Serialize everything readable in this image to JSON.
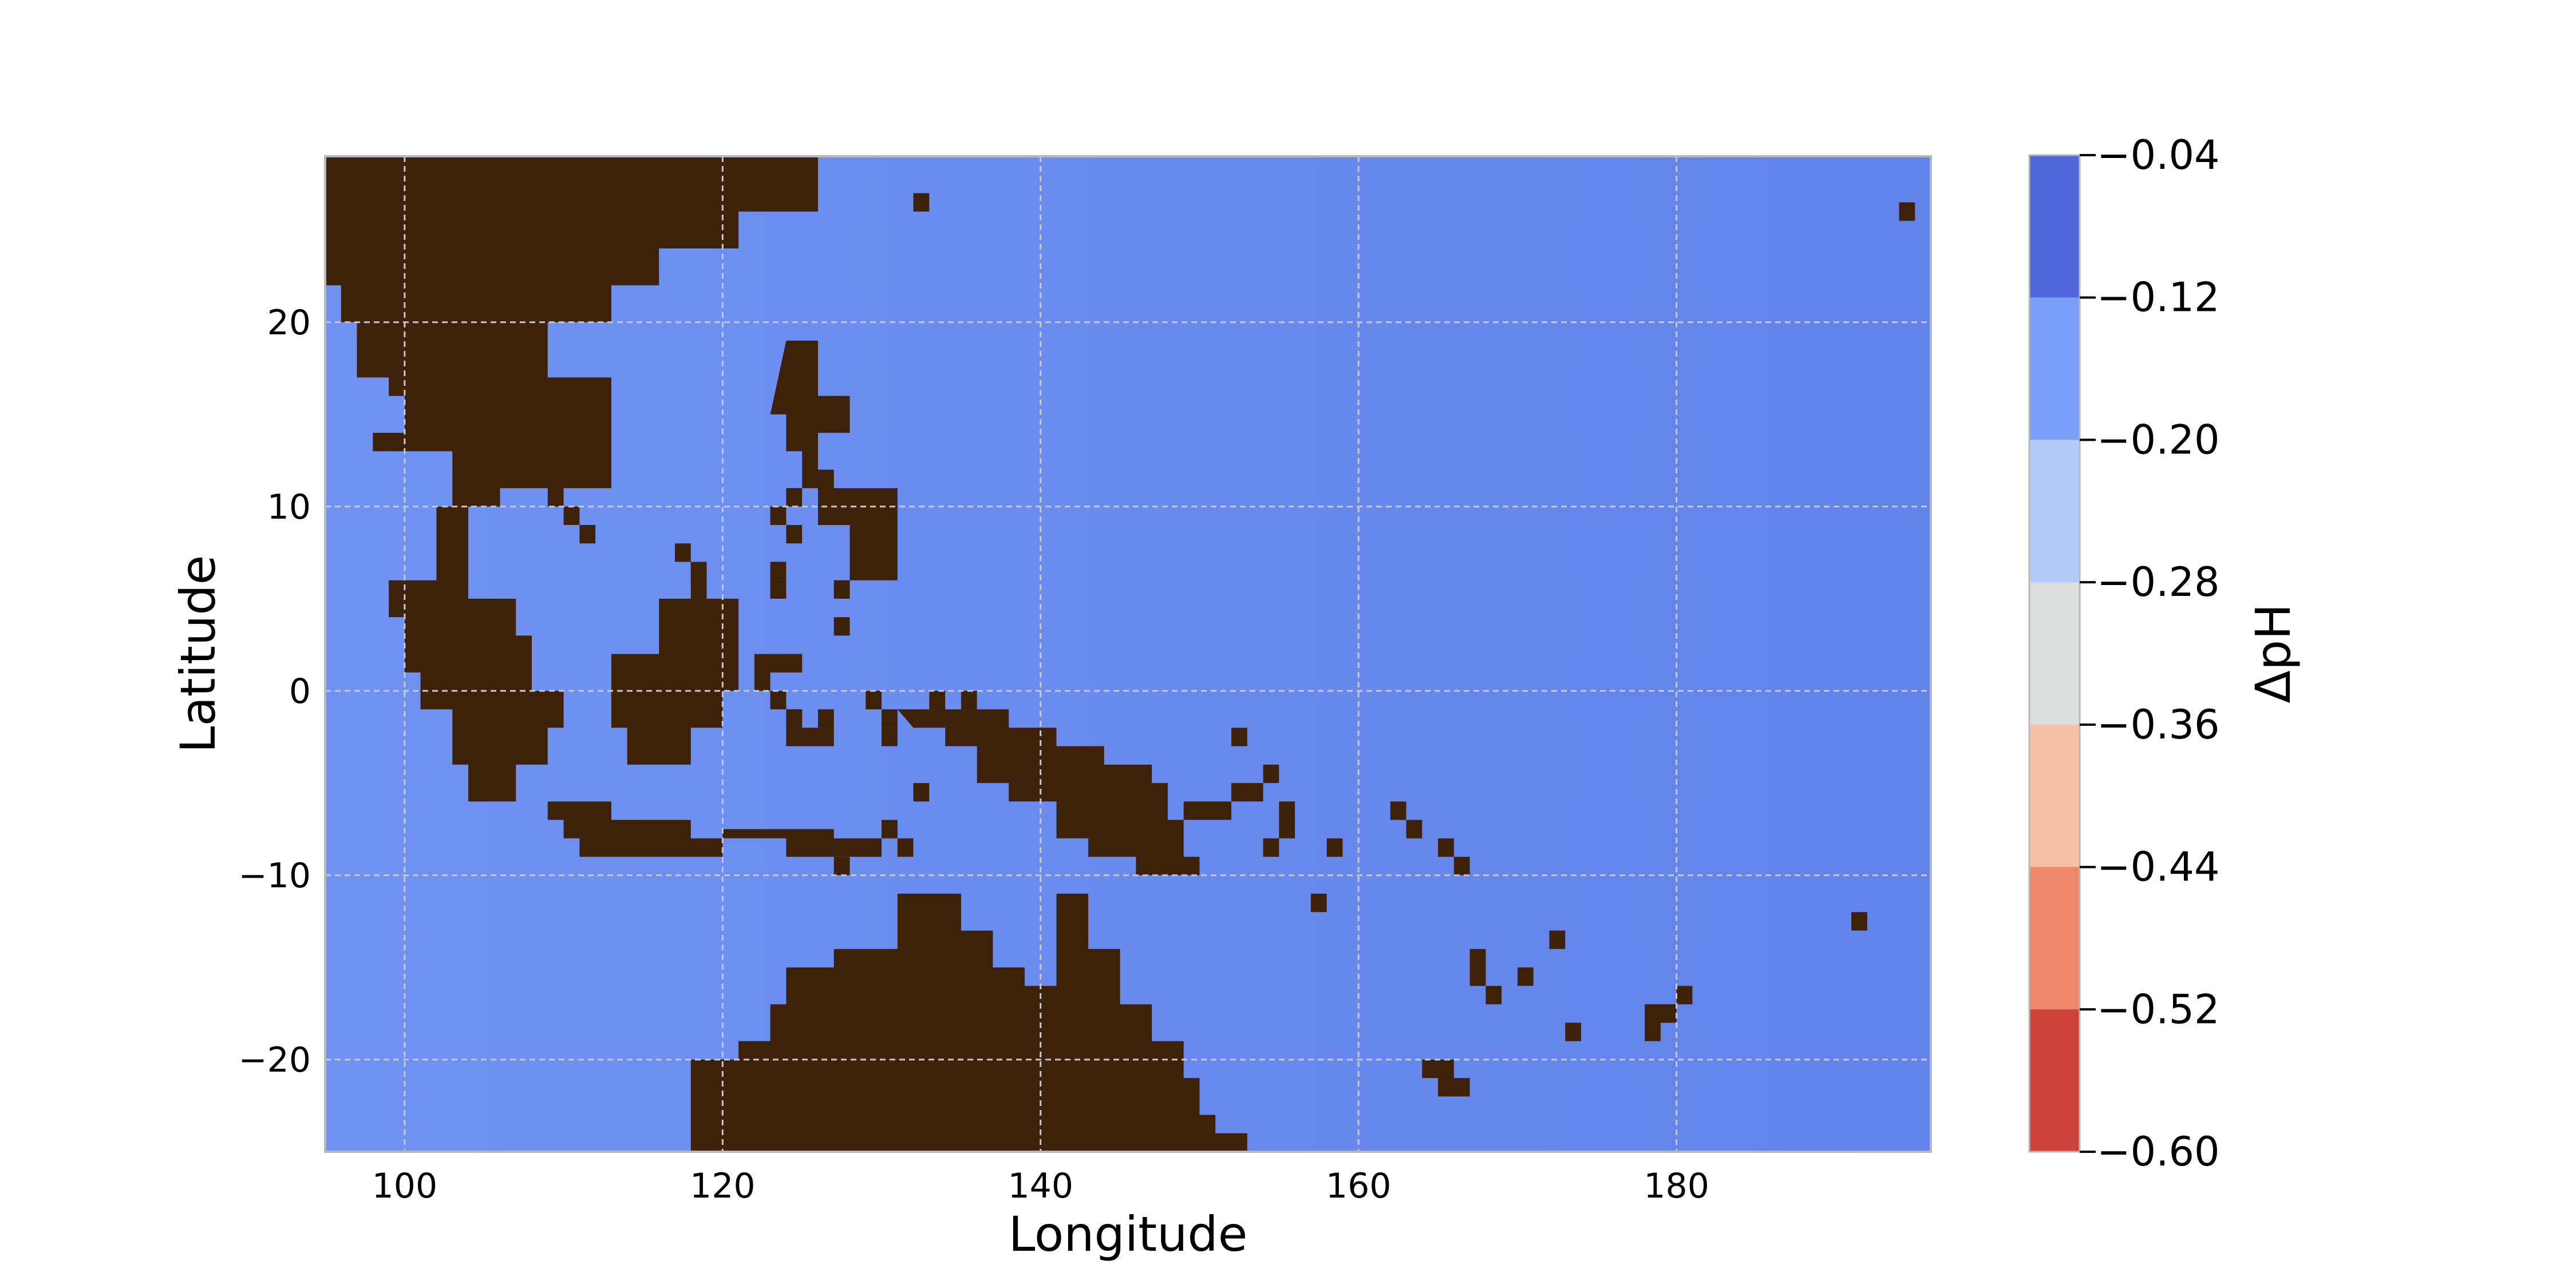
{
  "chart_data": {
    "type": "heatmap",
    "title": "",
    "xlabel": "Longitude",
    "ylabel": "Latitude",
    "xlim": [
      95,
      196
    ],
    "ylim": [
      -25,
      29
    ],
    "xticks": [
      100,
      120,
      140,
      160,
      180
    ],
    "yticks": [
      20,
      10,
      0,
      -10,
      -20
    ],
    "ytick_labels": [
      "20",
      "10",
      "0",
      "−10",
      "−20"
    ],
    "xtick_labels": [
      "100",
      "120",
      "140",
      "160",
      "180"
    ],
    "grid": true,
    "field_value_range": [
      -0.2,
      -0.04
    ],
    "land_color": "#3d2209",
    "colorbar": {
      "label": "ΔpH",
      "ticks": [
        -0.04,
        -0.12,
        -0.2,
        -0.28,
        -0.36,
        -0.44,
        -0.52,
        -0.6
      ],
      "tick_labels": [
        "−0.04",
        "−0.12",
        "−0.20",
        "−0.28",
        "−0.36",
        "−0.44",
        "−0.52",
        "−0.60"
      ],
      "bins": [
        {
          "from": -0.12,
          "to": -0.04,
          "color": "#5068d9"
        },
        {
          "from": -0.2,
          "to": -0.12,
          "color": "#7b9ff9"
        },
        {
          "from": -0.28,
          "to": -0.2,
          "color": "#b3cbf9"
        },
        {
          "from": -0.36,
          "to": -0.28,
          "color": "#dcdddd"
        },
        {
          "from": -0.44,
          "to": -0.36,
          "color": "#f5c0a6"
        },
        {
          "from": -0.52,
          "to": -0.44,
          "color": "#ef886b"
        },
        {
          "from": -0.6,
          "to": -0.52,
          "color": "#cd423b"
        }
      ]
    },
    "ocean_colors": {
      "east": "#6283ea",
      "west": "#7093f2"
    },
    "land_polygons": [
      {
        "name": "asia-mainland",
        "points": [
          [
            95,
            29
          ],
          [
            126,
            29
          ],
          [
            126,
            26
          ],
          [
            121,
            26
          ],
          [
            121,
            24
          ],
          [
            116,
            24
          ],
          [
            116,
            22
          ],
          [
            113,
            22
          ],
          [
            113,
            20
          ],
          [
            109,
            20
          ],
          [
            109,
            17
          ],
          [
            113,
            17
          ],
          [
            113,
            11
          ],
          [
            110,
            11
          ],
          [
            110,
            10
          ],
          [
            109,
            10
          ],
          [
            109,
            11
          ],
          [
            106,
            11
          ],
          [
            106,
            10
          ],
          [
            103,
            10
          ],
          [
            103,
            13
          ],
          [
            100,
            13
          ],
          [
            100,
            16
          ],
          [
            99,
            16
          ],
          [
            99,
            17
          ],
          [
            97,
            17
          ],
          [
            97,
            20
          ],
          [
            96,
            20
          ],
          [
            96,
            22
          ],
          [
            95,
            22
          ]
        ]
      },
      {
        "name": "malay-peninsula",
        "points": [
          [
            102,
            10
          ],
          [
            104,
            10
          ],
          [
            104,
            7
          ],
          [
            104,
            5
          ],
          [
            102,
            5
          ],
          [
            102,
            7
          ]
        ]
      },
      {
        "name": "sumatra",
        "points": [
          [
            99,
            6
          ],
          [
            104,
            6
          ],
          [
            104,
            5
          ],
          [
            107,
            5
          ],
          [
            107,
            3
          ],
          [
            108,
            3
          ],
          [
            108,
            0
          ],
          [
            110,
            0
          ],
          [
            110,
            -2
          ],
          [
            109,
            -2
          ],
          [
            109,
            -4
          ],
          [
            107,
            -4
          ],
          [
            107,
            -6
          ],
          [
            104,
            -6
          ],
          [
            104,
            -4
          ],
          [
            103,
            -4
          ],
          [
            103,
            -1
          ],
          [
            101,
            -1
          ],
          [
            101,
            1
          ],
          [
            100,
            1
          ],
          [
            100,
            4
          ],
          [
            99,
            4
          ]
        ]
      },
      {
        "name": "borneo",
        "points": [
          [
            113,
            0
          ],
          [
            113,
            2
          ],
          [
            116,
            2
          ],
          [
            116,
            5
          ],
          [
            118,
            5
          ],
          [
            118,
            7
          ],
          [
            119,
            7
          ],
          [
            119,
            5
          ],
          [
            121,
            5
          ],
          [
            121,
            0
          ],
          [
            120,
            0
          ],
          [
            120,
            -2
          ],
          [
            118,
            -2
          ],
          [
            118,
            -4
          ],
          [
            114,
            -4
          ],
          [
            114,
            -2
          ],
          [
            113,
            -2
          ]
        ]
      },
      {
        "name": "java-nusa",
        "points": [
          [
            109,
            -6
          ],
          [
            113,
            -6
          ],
          [
            113,
            -7
          ],
          [
            118,
            -7
          ],
          [
            118,
            -8
          ],
          [
            124,
            -8
          ],
          [
            124,
            -9
          ],
          [
            130,
            -9
          ],
          [
            130,
            -8
          ],
          [
            127,
            -8
          ],
          [
            127,
            -7.5
          ],
          [
            120,
            -7.5
          ],
          [
            120,
            -9
          ],
          [
            111,
            -9
          ],
          [
            111,
            -8
          ],
          [
            110,
            -8
          ],
          [
            110,
            -7
          ],
          [
            109,
            -7
          ]
        ]
      },
      {
        "name": "sulawesi",
        "points": [
          [
            122,
            2
          ],
          [
            125,
            2
          ],
          [
            125,
            1
          ],
          [
            123,
            1
          ],
          [
            123,
            -1
          ],
          [
            124,
            -1
          ],
          [
            124,
            -3
          ],
          [
            127,
            -3
          ],
          [
            127,
            -2
          ],
          [
            125,
            -2
          ],
          [
            125,
            -1
          ],
          [
            124,
            -1
          ],
          [
            124,
            0
          ],
          [
            122,
            0
          ]
        ]
      },
      {
        "name": "philippines",
        "points": [
          [
            124,
            19
          ],
          [
            126,
            19
          ],
          [
            126,
            16
          ],
          [
            128,
            16
          ],
          [
            128,
            14
          ],
          [
            126,
            14
          ],
          [
            126,
            12
          ],
          [
            127,
            12
          ],
          [
            127,
            11
          ],
          [
            131,
            11
          ],
          [
            131,
            6
          ],
          [
            128,
            6
          ],
          [
            128,
            9
          ],
          [
            126,
            9
          ],
          [
            126,
            11
          ],
          [
            125,
            11
          ],
          [
            125,
            13
          ],
          [
            124,
            13
          ],
          [
            124,
            15
          ],
          [
            123,
            15
          ]
        ]
      },
      {
        "name": "new-guinea",
        "points": [
          [
            131,
            -1
          ],
          [
            135,
            -1
          ],
          [
            135,
            -1
          ],
          [
            138,
            -1
          ],
          [
            138,
            -2
          ],
          [
            141,
            -2
          ],
          [
            141,
            -3
          ],
          [
            144,
            -3
          ],
          [
            144,
            -4
          ],
          [
            147,
            -4
          ],
          [
            147,
            -5
          ],
          [
            148,
            -5
          ],
          [
            148,
            -7
          ],
          [
            149,
            -7
          ],
          [
            149,
            -9
          ],
          [
            150,
            -9
          ],
          [
            150,
            -10
          ],
          [
            146,
            -10
          ],
          [
            146,
            -9
          ],
          [
            143,
            -9
          ],
          [
            143,
            -8
          ],
          [
            141,
            -8
          ],
          [
            141,
            -6
          ],
          [
            138,
            -6
          ],
          [
            138,
            -5
          ],
          [
            136,
            -5
          ],
          [
            136,
            -3
          ],
          [
            134,
            -3
          ],
          [
            134,
            -2
          ],
          [
            132,
            -2
          ]
        ]
      },
      {
        "name": "australia",
        "points": [
          [
            117,
            -25
          ],
          [
            118,
            -25
          ],
          [
            118,
            -20
          ],
          [
            121,
            -20
          ],
          [
            121,
            -19
          ],
          [
            123,
            -19
          ],
          [
            123,
            -17
          ],
          [
            124,
            -17
          ],
          [
            124,
            -15
          ],
          [
            127,
            -15
          ],
          [
            127,
            -14
          ],
          [
            131,
            -14
          ],
          [
            131,
            -11
          ],
          [
            135,
            -11
          ],
          [
            135,
            -13
          ],
          [
            137,
            -13
          ],
          [
            137,
            -15
          ],
          [
            139,
            -15
          ],
          [
            139,
            -16
          ],
          [
            141,
            -16
          ],
          [
            141,
            -11
          ],
          [
            143,
            -11
          ],
          [
            143,
            -14
          ],
          [
            145,
            -14
          ],
          [
            145,
            -17
          ],
          [
            147,
            -17
          ],
          [
            147,
            -19
          ],
          [
            149,
            -19
          ],
          [
            149,
            -21
          ],
          [
            150,
            -21
          ],
          [
            150,
            -23
          ],
          [
            151,
            -23
          ],
          [
            151,
            -24
          ],
          [
            153,
            -24
          ],
          [
            153,
            -25
          ]
        ]
      },
      {
        "name": "new-britain",
        "points": [
          [
            149,
            -6
          ],
          [
            152,
            -6
          ],
          [
            152,
            -5
          ],
          [
            154,
            -5
          ],
          [
            154,
            -4
          ],
          [
            155,
            -4
          ],
          [
            155,
            -5
          ],
          [
            154,
            -5
          ],
          [
            154,
            -6
          ],
          [
            152,
            -6
          ],
          [
            152,
            -7
          ],
          [
            149,
            -7
          ]
        ]
      },
      {
        "name": "solomons",
        "points": [
          [
            155,
            -6
          ],
          [
            156,
            -6
          ],
          [
            156,
            -8
          ],
          [
            155,
            -8
          ]
        ]
      },
      {
        "name": "solomons-2",
        "points": [
          [
            158,
            -8
          ],
          [
            159,
            -8
          ],
          [
            159,
            -9
          ],
          [
            158,
            -9
          ]
        ]
      },
      {
        "name": "vanuatu",
        "points": [
          [
            167,
            -14
          ],
          [
            168,
            -14
          ],
          [
            168,
            -16
          ],
          [
            169,
            -16
          ],
          [
            169,
            -17
          ],
          [
            168,
            -17
          ],
          [
            168,
            -16
          ],
          [
            167,
            -16
          ]
        ]
      },
      {
        "name": "new-caledonia",
        "points": [
          [
            164,
            -20
          ],
          [
            166,
            -20
          ],
          [
            166,
            -21
          ],
          [
            167,
            -21
          ],
          [
            167,
            -22
          ],
          [
            165,
            -22
          ],
          [
            165,
            -21
          ],
          [
            164,
            -21
          ]
        ]
      },
      {
        "name": "fiji",
        "points": [
          [
            178,
            -17
          ],
          [
            180,
            -17
          ],
          [
            180,
            -18
          ],
          [
            179,
            -18
          ],
          [
            179,
            -19
          ],
          [
            178,
            -19
          ]
        ]
      },
      {
        "name": "fiji-2",
        "points": [
          [
            180,
            -16
          ],
          [
            181,
            -16
          ],
          [
            181,
            -17
          ],
          [
            180,
            -17
          ]
        ]
      }
    ],
    "land_squares": [
      [
        98,
        13
      ],
      [
        99,
        13
      ],
      [
        132,
        26
      ],
      [
        194,
        25.5
      ],
      [
        110,
        9
      ],
      [
        111,
        8
      ],
      [
        117,
        7
      ],
      [
        118,
        6
      ],
      [
        117,
        3
      ],
      [
        118,
        4
      ],
      [
        118,
        -1
      ],
      [
        123,
        5
      ],
      [
        123,
        6
      ],
      [
        123,
        9
      ],
      [
        124,
        10
      ],
      [
        124,
        8
      ],
      [
        127,
        5
      ],
      [
        127,
        3
      ],
      [
        132,
        -6
      ],
      [
        124,
        -2
      ],
      [
        126,
        -2
      ],
      [
        129,
        -1
      ],
      [
        130,
        -3
      ],
      [
        130,
        -2
      ],
      [
        133,
        -1
      ],
      [
        154,
        -9
      ],
      [
        157,
        -12
      ],
      [
        162,
        -7
      ],
      [
        163,
        -8
      ],
      [
        165,
        -9
      ],
      [
        166,
        -10
      ],
      [
        170,
        -16
      ],
      [
        172,
        -14
      ],
      [
        173,
        -19
      ],
      [
        191,
        -13
      ],
      [
        127,
        -10
      ],
      [
        130,
        -8
      ],
      [
        131,
        -9
      ],
      [
        135,
        -1
      ],
      [
        152,
        -3
      ]
    ]
  }
}
